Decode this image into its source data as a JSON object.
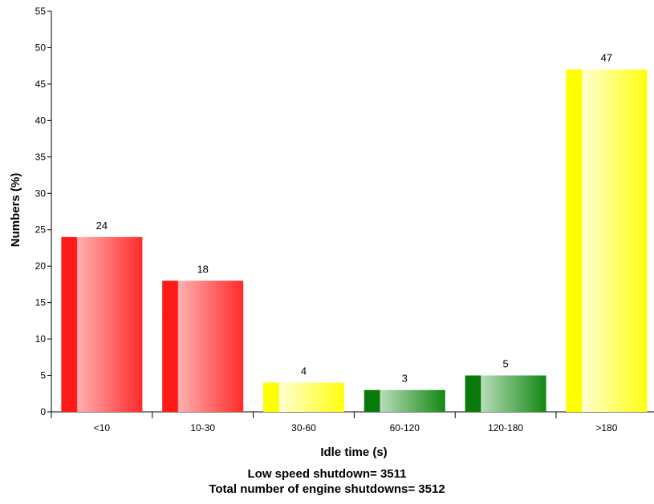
{
  "chart_data": {
    "type": "bar",
    "categories": [
      "<10",
      "10-30",
      "30-60",
      "60-120",
      "120-180",
      ">180"
    ],
    "values": [
      24,
      18,
      4,
      3,
      5,
      47
    ],
    "bar_colors": [
      "red",
      "red",
      "yellow",
      "green",
      "green",
      "yellow"
    ],
    "xlabel": "Idle time (s)",
    "ylabel": "Numbers (%)",
    "ylim": [
      0,
      55
    ],
    "yticks": [
      0,
      5,
      10,
      15,
      20,
      25,
      30,
      35,
      40,
      45,
      50,
      55
    ],
    "grid": false,
    "legend": "none"
  },
  "colors": {
    "red": {
      "dark": "#ff1a1a",
      "light": "#ffb0b0",
      "mid": "#ff2a2a"
    },
    "yellow": {
      "dark": "#ffff00",
      "light": "#ffffd0",
      "mid": "#ffff10"
    },
    "green": {
      "dark": "#0a7a0a",
      "light": "#b8dcb8",
      "mid": "#128812"
    }
  },
  "footer": {
    "line1": "Low speed shutdown= 3511",
    "line2": "Total number of engine shutdowns= 3512"
  }
}
